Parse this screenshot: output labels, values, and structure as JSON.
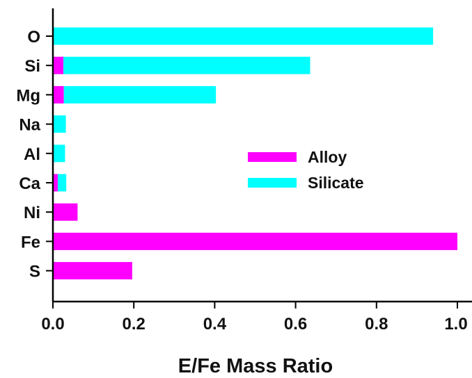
{
  "chart_data": {
    "type": "bar",
    "orientation": "horizontal",
    "stacked": true,
    "categories": [
      "O",
      "Si",
      "Mg",
      "Na",
      "Al",
      "Ca",
      "Ni",
      "Fe",
      "S"
    ],
    "series": [
      {
        "name": "Alloy",
        "color": "#ff00ff",
        "values": [
          0,
          0.026,
          0.027,
          0,
          0,
          0.012,
          0.061,
          1.0,
          0.196
        ]
      },
      {
        "name": "Silicate",
        "color": "#00ffff",
        "values": [
          0.94,
          0.61,
          0.376,
          0.032,
          0.03,
          0.021,
          0,
          0,
          0
        ]
      }
    ],
    "xlabel": "E/Fe Mass Ratio",
    "ylabel": "",
    "xlim": [
      0,
      1.04
    ],
    "xticks": [
      "0.0",
      "0.2",
      "0.4",
      "0.6",
      "0.8",
      "1.0"
    ],
    "legend_position": "center-right",
    "grid": false
  }
}
